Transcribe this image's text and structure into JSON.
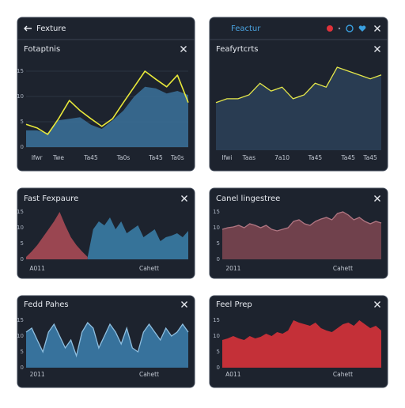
{
  "chart_data": [
    {
      "type": "area",
      "title": "Fexture",
      "subtitle": "Fotaptnis",
      "categories": [
        null,
        "Ifwr",
        null,
        "Twe",
        null,
        null,
        "Ta45",
        null,
        null,
        "Ta0s",
        null,
        null,
        "Ta45",
        null,
        "Ta0s",
        null
      ],
      "series": [
        {
          "type": "area",
          "color": "#3a6e96",
          "values": [
            3.3,
            3.3,
            2.8,
            5.3,
            5.6,
            5.9,
            4.4,
            3.6,
            5.3,
            7.2,
            10,
            11.9,
            11.6,
            10.6,
            11.1,
            10.3
          ]
        },
        {
          "type": "line",
          "color": "#e8e83a",
          "values": [
            4.5,
            3.8,
            2.5,
            5.6,
            9.2,
            7.2,
            5.6,
            4.1,
            5.6,
            8.8,
            11.9,
            15,
            13.4,
            11.9,
            14.2,
            8.8
          ]
        }
      ],
      "ylim": [
        0,
        15
      ],
      "yticks": [
        0,
        5,
        10,
        15
      ],
      "grid": true
    },
    {
      "type": "area",
      "title": "Feactur",
      "subtitle": "Feafyrtcrts",
      "categories": [
        null,
        "Ifwi",
        null,
        "Taas",
        null,
        null,
        "7a10",
        null,
        null,
        "Ta45",
        null,
        null,
        "Ta45",
        null,
        "Ta45",
        null
      ],
      "series": [
        {
          "type": "area",
          "color": "#2b3f57",
          "stroke": "#e6e84a",
          "values": [
            8.6,
            9.3,
            9.3,
            10,
            12.1,
            10.7,
            11.4,
            9.3,
            10,
            12.1,
            11.4,
            15,
            14.3,
            13.6,
            12.9,
            13.6
          ]
        }
      ],
      "ylim": [
        0,
        15
      ],
      "grid": false
    },
    {
      "type": "area",
      "title": "Fast Fexpaure",
      "categories": [
        null,
        null,
        "A011",
        null,
        null,
        null,
        null,
        null,
        null,
        null,
        null,
        null,
        null,
        null,
        null,
        null,
        null,
        null,
        null,
        null,
        null,
        null,
        "Cahett",
        null,
        null,
        null,
        null,
        null,
        null,
        null
      ],
      "series": [
        {
          "type": "area",
          "color": "#a84a55",
          "values": [
            0.75,
            2.5,
            4.5,
            7,
            9.5,
            12,
            15,
            10.75,
            7,
            4.5,
            2.5,
            0.75,
            null,
            null,
            null,
            null,
            null,
            null,
            null,
            null,
            null,
            null,
            null,
            null,
            null,
            null,
            null,
            null,
            null,
            null
          ]
        },
        {
          "type": "area",
          "color": "#3a7ca5",
          "values": [
            null,
            null,
            null,
            null,
            null,
            null,
            null,
            null,
            null,
            null,
            null,
            0.75,
            9.5,
            12,
            10.75,
            13.25,
            9.5,
            12,
            8.25,
            9.5,
            10.75,
            7,
            8.25,
            9.5,
            5.75,
            7,
            7.5,
            8.25,
            7,
            9
          ]
        }
      ],
      "ylim": [
        0,
        15
      ],
      "yticks": [
        0,
        5,
        10,
        15
      ],
      "grid": false
    },
    {
      "type": "area",
      "title": "Canel lingestree",
      "categories": [
        null,
        null,
        "2011",
        null,
        null,
        null,
        null,
        null,
        null,
        null,
        null,
        null,
        null,
        null,
        null,
        null,
        null,
        null,
        null,
        null,
        null,
        null,
        "Cahett",
        null,
        null,
        null,
        null,
        null,
        null,
        null
      ],
      "series": [
        {
          "type": "area",
          "color": "#7a4550",
          "stroke": "#b07682",
          "values": [
            9.5,
            10,
            10.25,
            10.75,
            10,
            11.25,
            10.75,
            10,
            10.75,
            9.5,
            9,
            9.5,
            10,
            12,
            12.5,
            11.25,
            10.75,
            12,
            12.75,
            13.25,
            12.5,
            14.5,
            15,
            14,
            12.5,
            13.25,
            12,
            11.25,
            12,
            11.5
          ]
        }
      ],
      "ylim": [
        0,
        15
      ],
      "yticks": [
        0,
        5,
        10,
        15
      ],
      "grid": false
    },
    {
      "type": "area",
      "title": "Fedd Pahes",
      "categories": [
        null,
        null,
        "2011",
        null,
        null,
        null,
        null,
        null,
        null,
        null,
        null,
        null,
        null,
        null,
        null,
        null,
        null,
        null,
        null,
        null,
        null,
        null,
        "Cahett",
        null,
        null,
        null,
        null,
        null,
        null,
        null
      ],
      "series": [
        {
          "type": "area",
          "color": "#3b7ba8",
          "stroke": "#8fbfe0",
          "values": [
            11.25,
            12.5,
            8.75,
            5,
            11.25,
            13.75,
            10,
            6.25,
            8.75,
            3.75,
            11.25,
            14.25,
            12.5,
            6.25,
            10,
            13.75,
            11.25,
            7.5,
            12.5,
            6.25,
            5,
            11.25,
            13.75,
            11.25,
            8.75,
            12.5,
            10,
            11.25,
            13.75,
            11.25
          ]
        }
      ],
      "ylim": [
        0,
        15
      ],
      "yticks": [
        0,
        5,
        10,
        15
      ],
      "grid": false
    },
    {
      "type": "area",
      "title": "Feel Prep",
      "categories": [
        null,
        null,
        "A011",
        null,
        null,
        null,
        null,
        null,
        null,
        null,
        null,
        null,
        null,
        null,
        null,
        null,
        null,
        null,
        null,
        null,
        null,
        null,
        "Cahett",
        null,
        null,
        null,
        null,
        null,
        null,
        null
      ],
      "series": [
        {
          "type": "area",
          "color": "#d7323a",
          "values": [
            8.75,
            9.25,
            10,
            9.25,
            8.75,
            10,
            9.25,
            9.75,
            10.75,
            10,
            11.25,
            10.75,
            11.75,
            15,
            14.25,
            13.75,
            13.25,
            14.25,
            12.5,
            11.75,
            11.25,
            12.5,
            13.75,
            14.25,
            13.25,
            15,
            13.75,
            12.5,
            13.25,
            11.75
          ]
        }
      ],
      "ylim": [
        0,
        15
      ],
      "yticks": [
        0,
        5,
        10,
        15
      ],
      "grid": false
    }
  ]
}
